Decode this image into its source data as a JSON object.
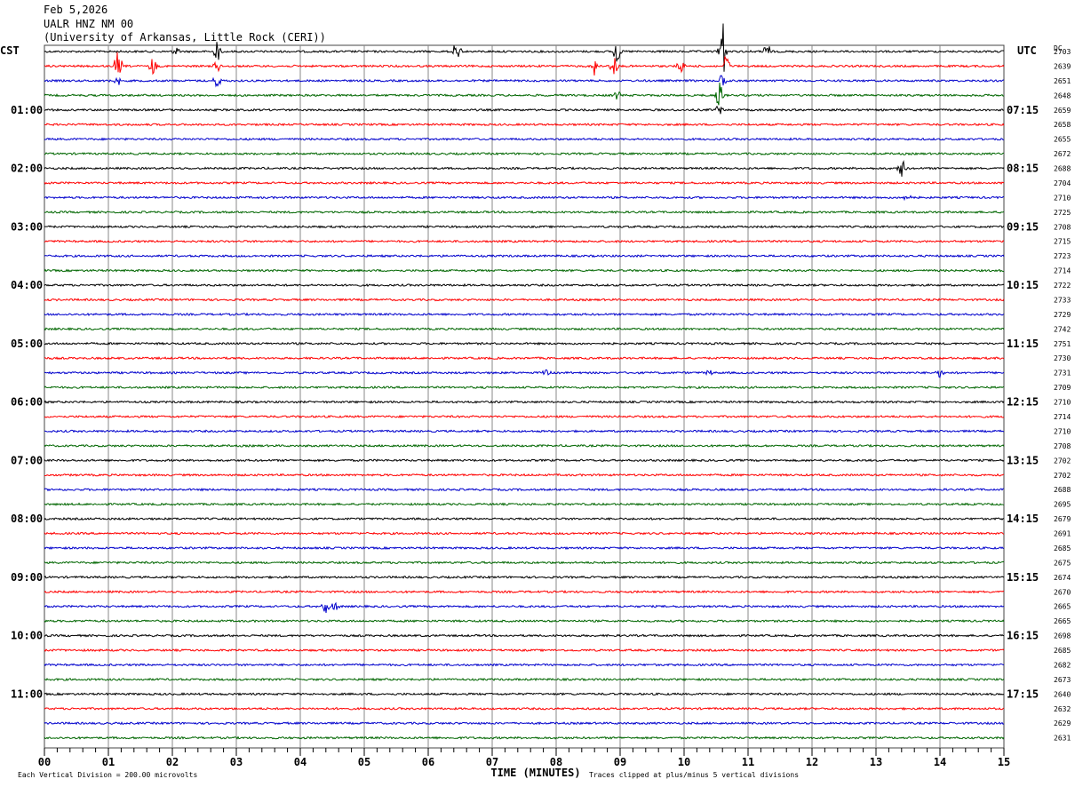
{
  "header": {
    "date": "Feb 5,2026",
    "station": "UALR HNZ NM 00",
    "institution": "(University of Arkansas, Little Rock (CERI))"
  },
  "labels": {
    "left_timezone": "CST",
    "right_timezone": "UTC",
    "dc_header": "DC",
    "x_axis_title": "TIME (MINUTES)",
    "scale_note": "Each Vertical Division =  200.00 microvolts",
    "clip_note": "Traces clipped at plus/minus 5 vertical divisions"
  },
  "chart_data": {
    "type": "line",
    "title": "UALR HNZ NM 00",
    "xlabel": "TIME (MINUTES)",
    "ylabel": "",
    "xlim": [
      0,
      15
    ],
    "x_ticks": [
      "00",
      "01",
      "02",
      "03",
      "04",
      "05",
      "06",
      "07",
      "08",
      "09",
      "10",
      "11",
      "12",
      "13",
      "14",
      "15"
    ],
    "trace_colors": [
      "#000000",
      "#ff0000",
      "#0000cc",
      "#006600"
    ],
    "row_count": 48,
    "left_time_labels": [
      {
        "row": 4,
        "text": "01:00"
      },
      {
        "row": 8,
        "text": "02:00"
      },
      {
        "row": 12,
        "text": "03:00"
      },
      {
        "row": 16,
        "text": "04:00"
      },
      {
        "row": 20,
        "text": "05:00"
      },
      {
        "row": 24,
        "text": "06:00"
      },
      {
        "row": 28,
        "text": "07:00"
      },
      {
        "row": 32,
        "text": "08:00"
      },
      {
        "row": 36,
        "text": "09:00"
      },
      {
        "row": 40,
        "text": "10:00"
      },
      {
        "row": 44,
        "text": "11:00"
      }
    ],
    "right_time_labels": [
      {
        "row": 4,
        "text": "07:15"
      },
      {
        "row": 8,
        "text": "08:15"
      },
      {
        "row": 12,
        "text": "09:15"
      },
      {
        "row": 16,
        "text": "10:15"
      },
      {
        "row": 20,
        "text": "11:15"
      },
      {
        "row": 24,
        "text": "12:15"
      },
      {
        "row": 28,
        "text": "13:15"
      },
      {
        "row": 32,
        "text": "14:15"
      },
      {
        "row": 36,
        "text": "15:15"
      },
      {
        "row": 40,
        "text": "16:15"
      },
      {
        "row": 44,
        "text": "17:15"
      }
    ],
    "dc_values": [
      "2703",
      "2639",
      "2651",
      "2648",
      "2659",
      "2658",
      "2655",
      "2672",
      "2688",
      "2704",
      "2710",
      "2725",
      "2708",
      "2715",
      "2723",
      "2714",
      "2722",
      "2733",
      "2729",
      "2742",
      "2751",
      "2730",
      "2731",
      "2709",
      "2710",
      "2714",
      "2710",
      "2708",
      "2702",
      "2702",
      "2688",
      "2695",
      "2679",
      "2691",
      "2685",
      "2675",
      "2674",
      "2670",
      "2665",
      "2665",
      "2698",
      "2685",
      "2682",
      "2673",
      "2640",
      "2632",
      "2629",
      "2631"
    ],
    "events": [
      {
        "row": 0,
        "minute": 2.05,
        "amp": 5
      },
      {
        "row": 0,
        "minute": 2.7,
        "amp": 12
      },
      {
        "row": 0,
        "minute": 6.45,
        "amp": 14
      },
      {
        "row": 0,
        "minute": 8.95,
        "amp": 14
      },
      {
        "row": 0,
        "minute": 10.6,
        "amp": 40
      },
      {
        "row": 0,
        "minute": 11.3,
        "amp": 10
      },
      {
        "row": 1,
        "minute": 1.15,
        "amp": 18
      },
      {
        "row": 1,
        "minute": 1.7,
        "amp": 10
      },
      {
        "row": 1,
        "minute": 2.7,
        "amp": 8
      },
      {
        "row": 1,
        "minute": 8.6,
        "amp": 12
      },
      {
        "row": 1,
        "minute": 8.9,
        "amp": 14
      },
      {
        "row": 1,
        "minute": 9.95,
        "amp": 10
      },
      {
        "row": 1,
        "minute": 10.65,
        "amp": 14
      },
      {
        "row": 2,
        "minute": 1.15,
        "amp": 6
      },
      {
        "row": 2,
        "minute": 2.7,
        "amp": 12
      },
      {
        "row": 2,
        "minute": 10.6,
        "amp": 10
      },
      {
        "row": 3,
        "minute": 8.95,
        "amp": 6
      },
      {
        "row": 3,
        "minute": 10.55,
        "amp": 16
      },
      {
        "row": 4,
        "minute": 10.55,
        "amp": 6
      },
      {
        "row": 8,
        "minute": 13.4,
        "amp": 12
      },
      {
        "row": 10,
        "minute": 13.5,
        "amp": 7
      },
      {
        "row": 22,
        "minute": 7.85,
        "amp": 4
      },
      {
        "row": 22,
        "minute": 10.4,
        "amp": 5
      },
      {
        "row": 22,
        "minute": 14.0,
        "amp": 6
      },
      {
        "row": 38,
        "minute": 4.4,
        "amp": 8
      },
      {
        "row": 38,
        "minute": 4.55,
        "amp": 6
      }
    ]
  }
}
